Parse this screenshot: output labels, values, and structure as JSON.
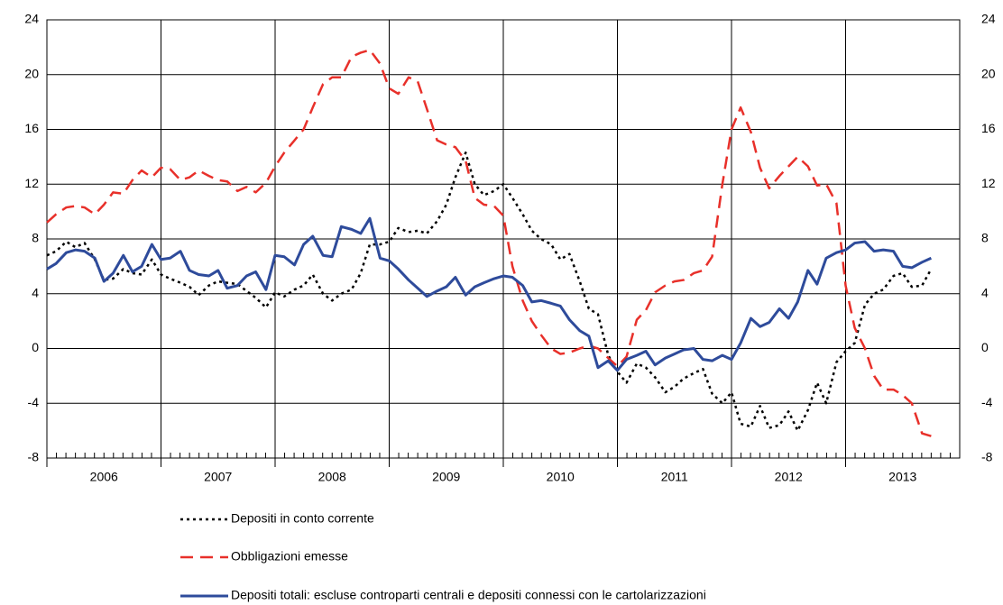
{
  "chart_data": {
    "type": "line",
    "x": [
      2006.0,
      2006.08,
      2006.17,
      2006.25,
      2006.33,
      2006.42,
      2006.5,
      2006.58,
      2006.67,
      2006.75,
      2006.83,
      2006.92,
      2007.0,
      2007.08,
      2007.17,
      2007.25,
      2007.33,
      2007.42,
      2007.5,
      2007.58,
      2007.67,
      2007.75,
      2007.83,
      2007.92,
      2008.0,
      2008.08,
      2008.17,
      2008.25,
      2008.33,
      2008.42,
      2008.5,
      2008.58,
      2008.67,
      2008.75,
      2008.83,
      2008.92,
      2009.0,
      2009.08,
      2009.17,
      2009.25,
      2009.33,
      2009.42,
      2009.5,
      2009.58,
      2009.67,
      2009.75,
      2009.83,
      2009.92,
      2010.0,
      2010.08,
      2010.17,
      2010.25,
      2010.33,
      2010.42,
      2010.5,
      2010.58,
      2010.67,
      2010.75,
      2010.83,
      2010.92,
      2011.0,
      2011.08,
      2011.17,
      2011.25,
      2011.33,
      2011.42,
      2011.5,
      2011.58,
      2011.67,
      2011.75,
      2011.83,
      2011.92,
      2012.0,
      2012.08,
      2012.17,
      2012.25,
      2012.33,
      2012.42,
      2012.5,
      2012.58,
      2012.67,
      2012.75,
      2012.83,
      2012.92,
      2013.0,
      2013.08,
      2013.17,
      2013.25,
      2013.33,
      2013.42,
      2013.5,
      2013.58,
      2013.67,
      2013.75
    ],
    "series": [
      {
        "name": "Depositi in conto corrente",
        "color": "#000000",
        "style": "dotted",
        "values": [
          6.8,
          7.1,
          7.8,
          7.4,
          7.7,
          6.5,
          5.0,
          5.1,
          5.8,
          5.5,
          5.4,
          6.5,
          5.4,
          5.1,
          4.8,
          4.5,
          3.9,
          4.6,
          4.9,
          4.8,
          4.7,
          4.2,
          3.7,
          3.0,
          4.1,
          3.8,
          4.3,
          4.6,
          5.4,
          4.0,
          3.5,
          4.0,
          4.3,
          5.5,
          7.6,
          7.6,
          7.8,
          8.8,
          8.5,
          8.6,
          8.4,
          9.3,
          10.5,
          12.5,
          14.3,
          12.0,
          11.2,
          11.5,
          12.0,
          11.0,
          9.8,
          8.6,
          8.0,
          7.6,
          6.5,
          6.9,
          4.9,
          2.9,
          2.5,
          -0.5,
          -1.7,
          -2.5,
          -1.1,
          -1.4,
          -2.1,
          -3.2,
          -2.8,
          -2.2,
          -1.8,
          -1.5,
          -3.3,
          -4.0,
          -3.2,
          -5.5,
          -5.7,
          -4.2,
          -5.8,
          -5.6,
          -4.6,
          -6.0,
          -4.5,
          -2.5,
          -4.0,
          -1.0,
          -0.2,
          0.4,
          3.2,
          4.0,
          4.3,
          5.3,
          5.5,
          4.5,
          4.6,
          5.8
        ]
      },
      {
        "name": "Obbligazioni emesse",
        "color": "#e8302a",
        "style": "dashed",
        "values": [
          9.2,
          9.8,
          10.3,
          10.4,
          10.3,
          9.8,
          10.5,
          11.4,
          11.3,
          12.3,
          13.0,
          12.5,
          13.2,
          13.1,
          12.3,
          12.5,
          13.0,
          12.6,
          12.3,
          12.2,
          11.5,
          11.8,
          11.4,
          12.1,
          13.3,
          14.3,
          15.2,
          16.0,
          17.6,
          19.3,
          19.8,
          19.8,
          21.3,
          21.6,
          21.8,
          20.8,
          19.0,
          18.6,
          19.8,
          19.5,
          17.5,
          15.2,
          14.9,
          14.7,
          13.7,
          11.0,
          10.5,
          10.4,
          9.7,
          6.0,
          3.5,
          2.0,
          1.0,
          0.0,
          -0.4,
          -0.3,
          0.0,
          0.2,
          0.0,
          -0.7,
          -1.3,
          -0.6,
          2.1,
          2.8,
          4.1,
          4.6,
          4.9,
          5.0,
          5.5,
          5.7,
          6.7,
          12.0,
          16.0,
          17.6,
          15.8,
          13.2,
          11.7,
          12.6,
          13.3,
          14.0,
          13.3,
          11.9,
          12.0,
          10.6,
          4.6,
          1.5,
          0.0,
          -2.0,
          -3.0,
          -3.0,
          -3.4,
          -4.0,
          -6.2,
          -6.4
        ]
      },
      {
        "name": "Depositi totali: escluse controparti centrali e depositi connessi con le cartolarizzazioni",
        "color": "#2e4b9b",
        "style": "solid",
        "values": [
          5.8,
          6.2,
          7.0,
          7.2,
          7.1,
          6.6,
          4.9,
          5.5,
          6.8,
          5.6,
          6.0,
          7.6,
          6.5,
          6.6,
          7.1,
          5.7,
          5.4,
          5.3,
          5.7,
          4.4,
          4.6,
          5.3,
          5.6,
          4.3,
          6.8,
          6.7,
          6.1,
          7.6,
          8.2,
          6.8,
          6.7,
          8.9,
          8.7,
          8.4,
          9.5,
          6.6,
          6.4,
          5.8,
          5.0,
          4.4,
          3.8,
          4.2,
          4.5,
          5.2,
          3.9,
          4.5,
          4.8,
          5.1,
          5.3,
          5.2,
          4.6,
          3.4,
          3.5,
          3.3,
          3.1,
          2.1,
          1.3,
          0.9,
          -1.4,
          -0.9,
          -1.6,
          -0.8,
          -0.5,
          -0.2,
          -1.2,
          -0.7,
          -0.4,
          -0.1,
          0.0,
          -0.8,
          -0.9,
          -0.5,
          -0.8,
          0.4,
          2.2,
          1.6,
          1.9,
          2.9,
          2.2,
          3.4,
          5.7,
          4.7,
          6.6,
          7.0,
          7.2,
          7.7,
          7.8,
          7.1,
          7.2,
          7.1,
          6.0,
          5.9,
          6.3,
          6.6
        ]
      }
    ],
    "xlim": [
      2006,
      2014
    ],
    "xticks": [
      2006,
      2007,
      2008,
      2009,
      2010,
      2011,
      2012,
      2013
    ],
    "ylim": [
      -8,
      24
    ],
    "yticks": [
      -8,
      -4,
      0,
      4,
      8,
      12,
      16,
      20,
      24
    ],
    "grid": true,
    "legend": "bottom"
  }
}
